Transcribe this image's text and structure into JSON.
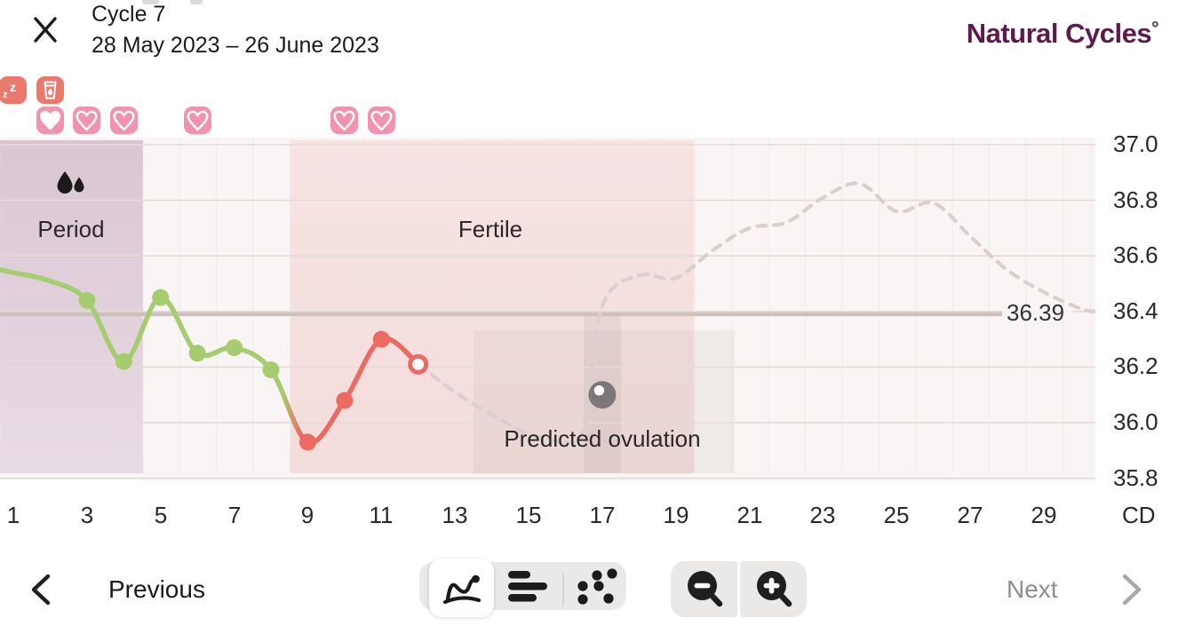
{
  "header": {
    "title": "Cycle 7",
    "date_range": "28 May 2023 – 26 June 2023",
    "logo": "Natural Cycles",
    "logo_degree": "°"
  },
  "day_icons": {
    "row1": [
      {
        "day": 1,
        "type": "sleep"
      },
      {
        "day": 2,
        "type": "drink"
      }
    ],
    "hearts": [
      {
        "day": 2,
        "filled": true
      },
      {
        "day": 3,
        "filled": false
      },
      {
        "day": 4,
        "filled": false
      },
      {
        "day": 6,
        "filled": false
      },
      {
        "day": 10,
        "filled": false
      },
      {
        "day": 11,
        "filled": false
      }
    ]
  },
  "chart_data": {
    "type": "line",
    "title": "Basal body temperature by cycle day",
    "x_label": "CD",
    "x_ticks": [
      1,
      3,
      5,
      7,
      9,
      11,
      13,
      15,
      17,
      19,
      21,
      23,
      25,
      27,
      29
    ],
    "y_ticks": [
      37.0,
      36.8,
      36.6,
      36.4,
      36.2,
      36.0,
      35.8
    ],
    "y_tick_labels": [
      "37.0",
      "36.8",
      "36.6",
      "36.4",
      "36.2",
      "36.0",
      "35.8"
    ],
    "x_range": [
      1,
      30
    ],
    "y_range": [
      35.8,
      37.0
    ],
    "grid": true,
    "cover_line": {
      "value": 36.39,
      "label": "36.39"
    },
    "regions": [
      {
        "name": "period",
        "label": "Period",
        "day_start": 0.64,
        "day_end": 4.52
      },
      {
        "name": "fertile",
        "label": "Fertile",
        "day_start": 8.53,
        "day_end": 19.49
      }
    ],
    "predicted_ovulation": {
      "day": 17,
      "label": "Predicted ovulation",
      "marker_temp": 36.1
    },
    "measured": {
      "days": [
        0.64,
        1,
        2,
        3,
        4,
        5,
        6,
        7,
        8,
        9,
        10,
        11,
        12
      ],
      "temps": [
        36.55,
        36.54,
        36.51,
        36.44,
        36.22,
        36.45,
        36.25,
        36.27,
        36.19,
        35.93,
        36.08,
        36.3,
        36.21
      ],
      "green_dot_days": [
        3,
        4,
        5,
        6,
        7,
        8
      ],
      "red_dot_days": [
        9,
        10,
        11
      ],
      "open_dot_day": 12
    },
    "predicted": {
      "days": [
        12,
        13,
        14,
        15,
        16,
        16.5,
        17,
        18,
        19,
        20,
        21,
        22,
        23,
        24,
        25,
        26,
        27,
        28,
        29,
        30,
        30.4
      ],
      "temps": [
        36.21,
        36.11,
        36.03,
        35.96,
        35.93,
        35.98,
        36.42,
        36.53,
        36.52,
        36.62,
        36.7,
        36.72,
        36.81,
        36.86,
        36.76,
        36.79,
        36.67,
        36.55,
        36.47,
        36.41,
        36.4
      ]
    }
  },
  "toolbar": {
    "previous_label": "Previous",
    "next_label": "Next",
    "segments": [
      {
        "name": "line-chart",
        "selected": true
      },
      {
        "name": "bar-chart",
        "selected": false
      },
      {
        "name": "scatter-chart",
        "selected": false
      }
    ],
    "zoom_buttons": [
      "zoom-out",
      "zoom-in"
    ]
  },
  "colors": {
    "accent_green": "#a6cc70",
    "accent_red": "#ed6a63",
    "period_fill_top": "#d9c5d2",
    "period_fill_bottom": "#e8dce4",
    "fertile_fill_top": "#f6e3e2",
    "fertile_fill_bottom": "#f3dddc",
    "predicted_line": "#dbcfce",
    "cover_line": "#ccc1bb",
    "gridline": "#e4dad6",
    "logo_purple": "#5c1a4e",
    "badge_salmon": "#ea796c",
    "heart_pink": "#f193ae",
    "marker_gray": "#7b7877"
  }
}
